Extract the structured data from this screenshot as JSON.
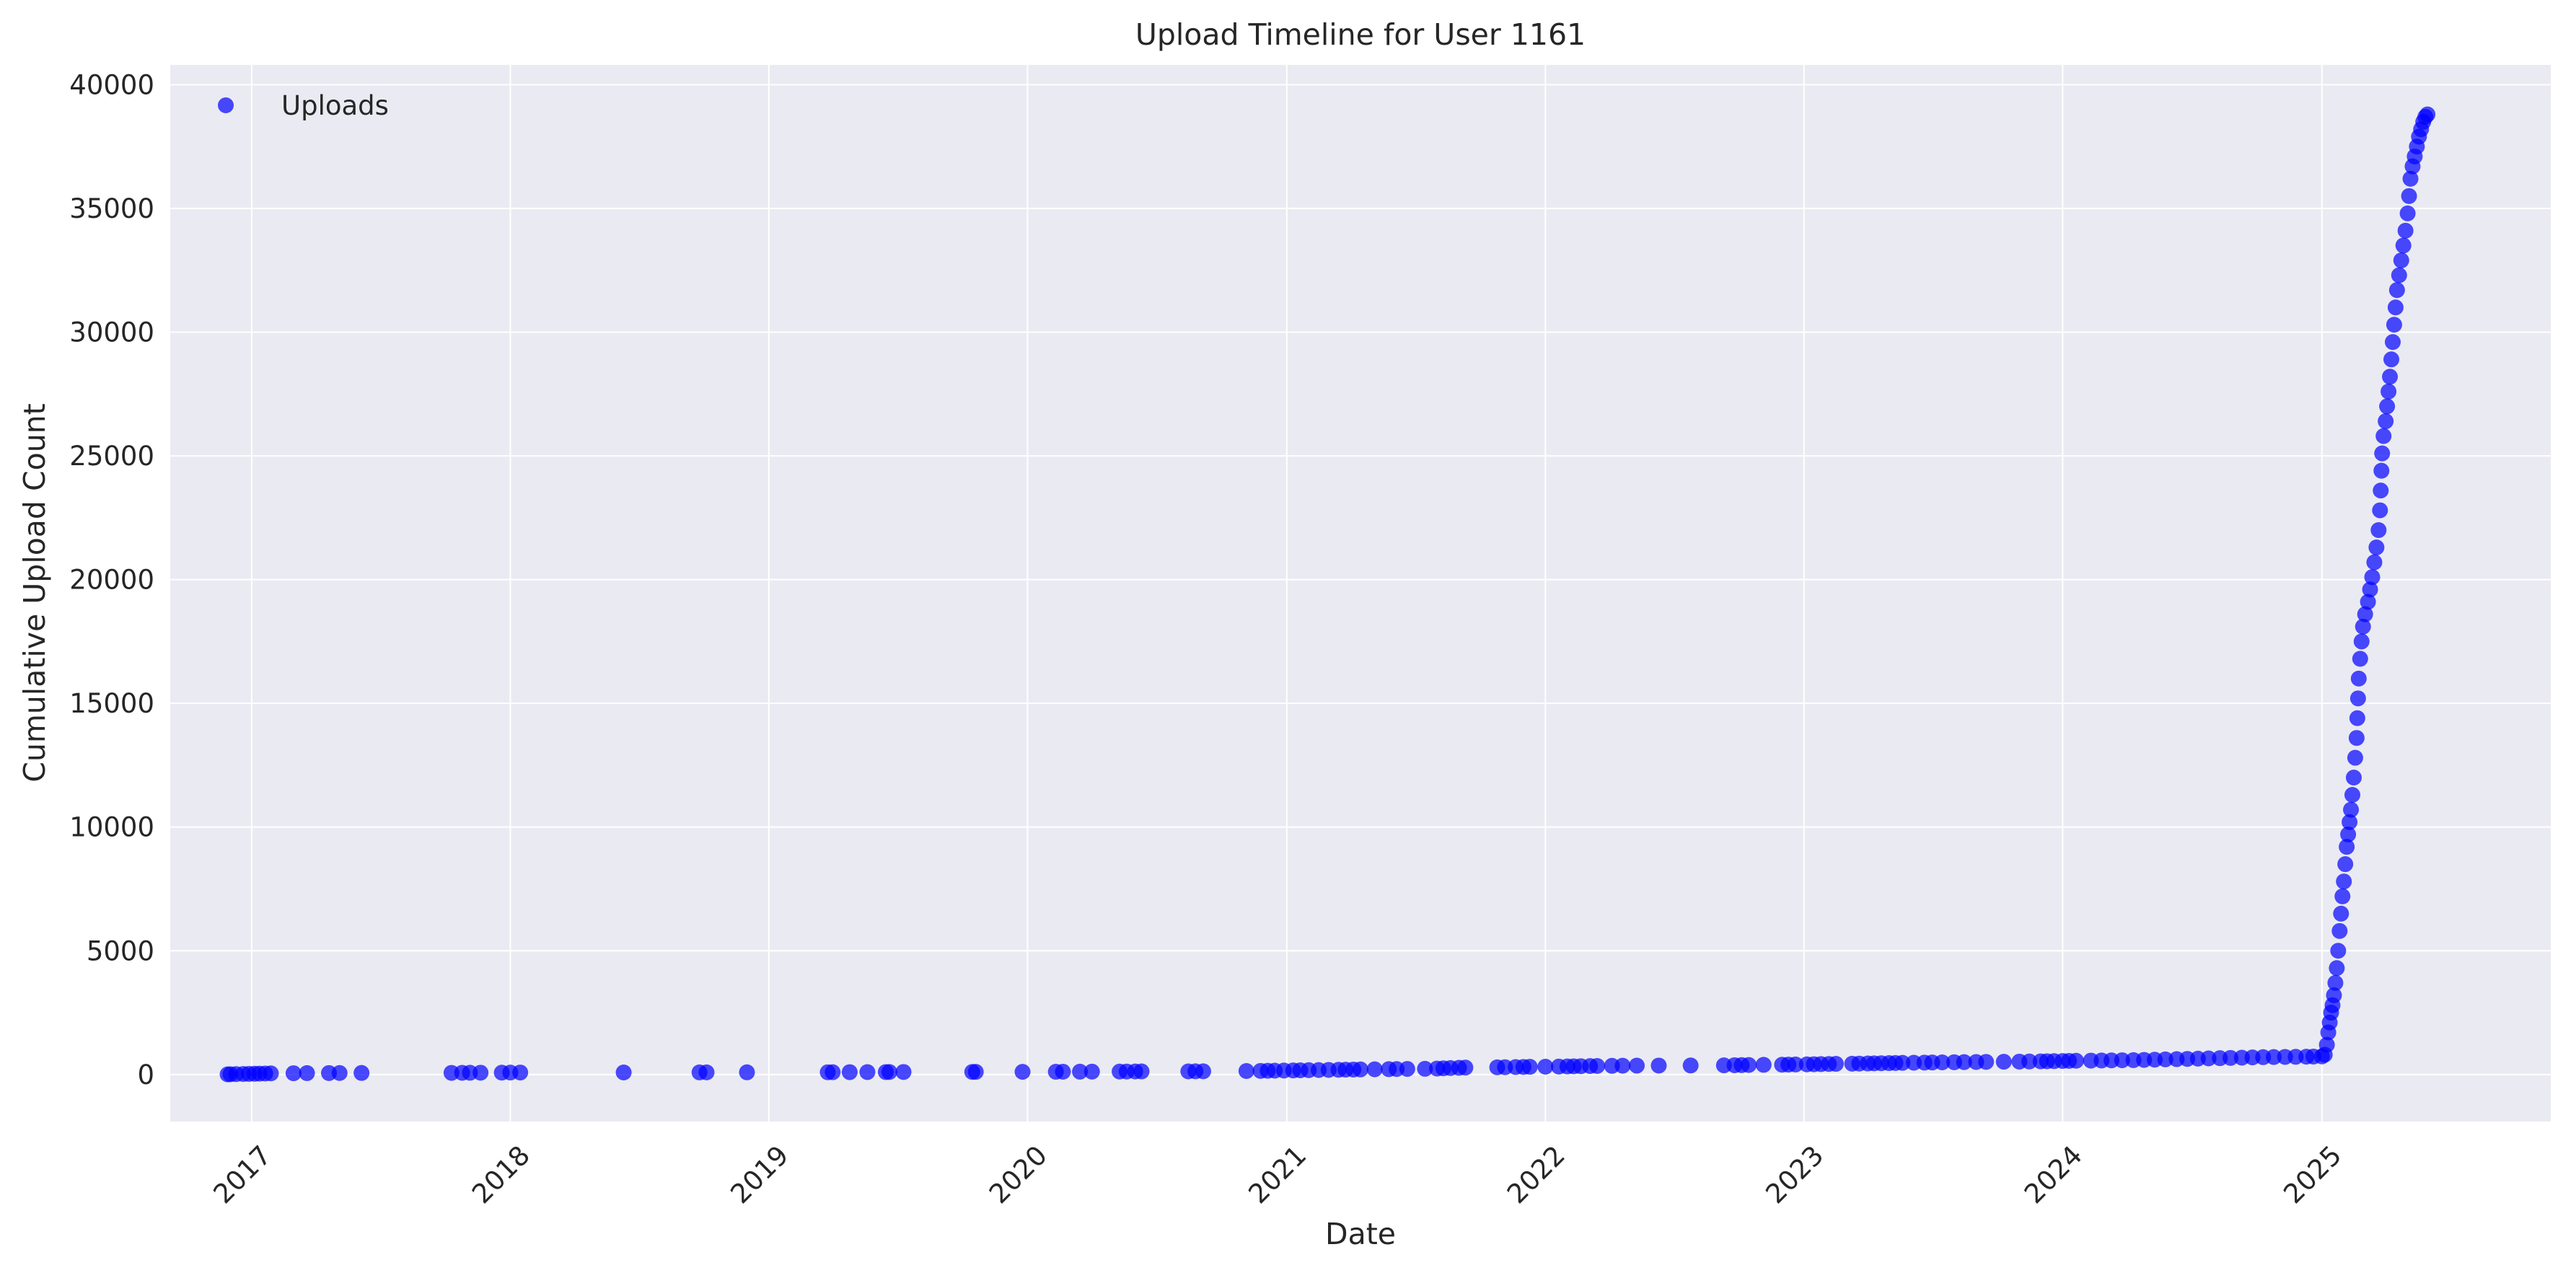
{
  "chart_data": {
    "type": "scatter",
    "title": "Upload Timeline for User 1161",
    "xlabel": "Date",
    "ylabel": "Cumulative Upload Count",
    "x_ticks": [
      "2017",
      "2018",
      "2019",
      "2020",
      "2021",
      "2022",
      "2023",
      "2024",
      "2025"
    ],
    "y_ticks": [
      0,
      5000,
      10000,
      15000,
      20000,
      25000,
      30000,
      35000,
      40000
    ],
    "xlim": [
      "2016-09-08",
      "2025-11-20"
    ],
    "ylim": [
      -1900,
      40800
    ],
    "grid": true,
    "legend_position": "top-left",
    "colors": {
      "marker": "#0000ff",
      "plot_bg": "#eaeaf2",
      "grid": "#ffffff"
    },
    "series": [
      {
        "name": "Uploads",
        "points": [
          [
            "2016-11-28",
            5
          ],
          [
            "2016-12-02",
            10
          ],
          [
            "2016-12-10",
            15
          ],
          [
            "2016-12-20",
            20
          ],
          [
            "2016-12-28",
            25
          ],
          [
            "2017-01-05",
            30
          ],
          [
            "2017-01-12",
            35
          ],
          [
            "2017-01-20",
            40
          ],
          [
            "2017-01-28",
            45
          ],
          [
            "2017-03-01",
            50
          ],
          [
            "2017-03-20",
            55
          ],
          [
            "2017-04-20",
            58
          ],
          [
            "2017-05-05",
            60
          ],
          [
            "2017-06-05",
            62
          ],
          [
            "2017-10-10",
            65
          ],
          [
            "2017-10-25",
            68
          ],
          [
            "2017-11-05",
            70
          ],
          [
            "2017-11-20",
            72
          ],
          [
            "2017-12-20",
            75
          ],
          [
            "2018-01-01",
            78
          ],
          [
            "2018-01-15",
            80
          ],
          [
            "2018-06-10",
            82
          ],
          [
            "2018-09-25",
            84
          ],
          [
            "2018-10-05",
            86
          ],
          [
            "2018-12-01",
            88
          ],
          [
            "2019-03-25",
            90
          ],
          [
            "2019-04-01",
            92
          ],
          [
            "2019-04-25",
            94
          ],
          [
            "2019-05-20",
            96
          ],
          [
            "2019-06-15",
            98
          ],
          [
            "2019-06-20",
            100
          ],
          [
            "2019-07-10",
            102
          ],
          [
            "2019-10-15",
            104
          ],
          [
            "2019-10-20",
            106
          ],
          [
            "2019-12-25",
            108
          ],
          [
            "2020-02-10",
            110
          ],
          [
            "2020-02-20",
            112
          ],
          [
            "2020-03-15",
            114
          ],
          [
            "2020-04-01",
            116
          ],
          [
            "2020-05-10",
            118
          ],
          [
            "2020-05-20",
            120
          ],
          [
            "2020-06-01",
            122
          ],
          [
            "2020-06-10",
            124
          ],
          [
            "2020-08-15",
            126
          ],
          [
            "2020-08-25",
            128
          ],
          [
            "2020-09-05",
            130
          ],
          [
            "2020-11-05",
            140
          ],
          [
            "2020-11-25",
            145
          ],
          [
            "2020-12-05",
            150
          ],
          [
            "2020-12-15",
            155
          ],
          [
            "2020-12-28",
            160
          ],
          [
            "2021-01-10",
            165
          ],
          [
            "2021-01-20",
            170
          ],
          [
            "2021-02-01",
            175
          ],
          [
            "2021-02-15",
            180
          ],
          [
            "2021-03-01",
            185
          ],
          [
            "2021-03-15",
            190
          ],
          [
            "2021-03-25",
            195
          ],
          [
            "2021-04-05",
            200
          ],
          [
            "2021-04-15",
            205
          ],
          [
            "2021-05-05",
            210
          ],
          [
            "2021-05-25",
            215
          ],
          [
            "2021-06-05",
            220
          ],
          [
            "2021-06-20",
            225
          ],
          [
            "2021-07-15",
            230
          ],
          [
            "2021-08-01",
            240
          ],
          [
            "2021-08-10",
            250
          ],
          [
            "2021-08-20",
            260
          ],
          [
            "2021-09-01",
            270
          ],
          [
            "2021-09-10",
            280
          ],
          [
            "2021-10-25",
            290
          ],
          [
            "2021-11-05",
            295
          ],
          [
            "2021-11-20",
            300
          ],
          [
            "2021-12-01",
            305
          ],
          [
            "2021-12-10",
            310
          ],
          [
            "2022-01-01",
            315
          ],
          [
            "2022-01-20",
            320
          ],
          [
            "2022-02-01",
            325
          ],
          [
            "2022-02-10",
            330
          ],
          [
            "2022-02-20",
            335
          ],
          [
            "2022-03-05",
            340
          ],
          [
            "2022-03-15",
            345
          ],
          [
            "2022-04-05",
            350
          ],
          [
            "2022-04-20",
            355
          ],
          [
            "2022-05-10",
            358
          ],
          [
            "2022-06-10",
            360
          ],
          [
            "2022-07-25",
            365
          ],
          [
            "2022-09-10",
            370
          ],
          [
            "2022-09-25",
            375
          ],
          [
            "2022-10-05",
            380
          ],
          [
            "2022-10-15",
            385
          ],
          [
            "2022-11-05",
            390
          ],
          [
            "2022-12-01",
            395
          ],
          [
            "2022-12-10",
            400
          ],
          [
            "2022-12-20",
            405
          ],
          [
            "2023-01-05",
            410
          ],
          [
            "2023-01-15",
            415
          ],
          [
            "2023-01-25",
            420
          ],
          [
            "2023-02-05",
            425
          ],
          [
            "2023-02-15",
            430
          ],
          [
            "2023-03-10",
            435
          ],
          [
            "2023-03-20",
            440
          ],
          [
            "2023-04-01",
            445
          ],
          [
            "2023-04-10",
            450
          ],
          [
            "2023-04-20",
            455
          ],
          [
            "2023-05-01",
            460
          ],
          [
            "2023-05-10",
            465
          ],
          [
            "2023-05-20",
            470
          ],
          [
            "2023-06-05",
            475
          ],
          [
            "2023-06-20",
            480
          ],
          [
            "2023-07-01",
            485
          ],
          [
            "2023-07-15",
            490
          ],
          [
            "2023-08-01",
            495
          ],
          [
            "2023-08-15",
            500
          ],
          [
            "2023-09-01",
            505
          ],
          [
            "2023-09-15",
            510
          ],
          [
            "2023-10-10",
            515
          ],
          [
            "2023-11-01",
            520
          ],
          [
            "2023-11-15",
            525
          ],
          [
            "2023-12-01",
            530
          ],
          [
            "2023-12-10",
            535
          ],
          [
            "2023-12-20",
            540
          ],
          [
            "2024-01-01",
            545
          ],
          [
            "2024-01-10",
            550
          ],
          [
            "2024-01-20",
            555
          ],
          [
            "2024-02-10",
            560
          ],
          [
            "2024-02-25",
            565
          ],
          [
            "2024-03-10",
            570
          ],
          [
            "2024-03-25",
            575
          ],
          [
            "2024-04-10",
            580
          ],
          [
            "2024-04-25",
            590
          ],
          [
            "2024-05-10",
            600
          ],
          [
            "2024-05-25",
            610
          ],
          [
            "2024-06-10",
            620
          ],
          [
            "2024-06-25",
            630
          ],
          [
            "2024-07-10",
            640
          ],
          [
            "2024-07-25",
            650
          ],
          [
            "2024-08-10",
            660
          ],
          [
            "2024-08-25",
            670
          ],
          [
            "2024-09-10",
            680
          ],
          [
            "2024-09-25",
            690
          ],
          [
            "2024-10-10",
            700
          ],
          [
            "2024-10-25",
            705
          ],
          [
            "2024-11-10",
            710
          ],
          [
            "2024-11-25",
            715
          ],
          [
            "2024-12-10",
            720
          ],
          [
            "2024-12-20",
            725
          ],
          [
            "2025-01-01",
            730
          ],
          [
            "2025-01-05",
            800
          ],
          [
            "2025-01-08",
            1200
          ],
          [
            "2025-01-10",
            1700
          ],
          [
            "2025-01-12",
            2100
          ],
          [
            "2025-01-14",
            2500
          ],
          [
            "2025-01-16",
            2800
          ],
          [
            "2025-01-18",
            3200
          ],
          [
            "2025-01-20",
            3700
          ],
          [
            "2025-01-22",
            4300
          ],
          [
            "2025-01-24",
            5000
          ],
          [
            "2025-01-26",
            5800
          ],
          [
            "2025-01-28",
            6500
          ],
          [
            "2025-01-30",
            7200
          ],
          [
            "2025-02-01",
            7800
          ],
          [
            "2025-02-03",
            8500
          ],
          [
            "2025-02-05",
            9200
          ],
          [
            "2025-02-07",
            9700
          ],
          [
            "2025-02-09",
            10200
          ],
          [
            "2025-02-11",
            10700
          ],
          [
            "2025-02-13",
            11300
          ],
          [
            "2025-02-15",
            12000
          ],
          [
            "2025-02-17",
            12800
          ],
          [
            "2025-02-19",
            13600
          ],
          [
            "2025-02-20",
            14400
          ],
          [
            "2025-02-21",
            15200
          ],
          [
            "2025-02-22",
            16000
          ],
          [
            "2025-02-24",
            16800
          ],
          [
            "2025-02-26",
            17500
          ],
          [
            "2025-02-28",
            18100
          ],
          [
            "2025-03-03",
            18600
          ],
          [
            "2025-03-07",
            19100
          ],
          [
            "2025-03-10",
            19600
          ],
          [
            "2025-03-13",
            20100
          ],
          [
            "2025-03-16",
            20700
          ],
          [
            "2025-03-19",
            21300
          ],
          [
            "2025-03-22",
            22000
          ],
          [
            "2025-03-24",
            22800
          ],
          [
            "2025-03-25",
            23600
          ],
          [
            "2025-03-26",
            24400
          ],
          [
            "2025-03-27",
            25100
          ],
          [
            "2025-03-29",
            25800
          ],
          [
            "2025-04-01",
            26400
          ],
          [
            "2025-04-03",
            27000
          ],
          [
            "2025-04-05",
            27600
          ],
          [
            "2025-04-07",
            28200
          ],
          [
            "2025-04-09",
            28900
          ],
          [
            "2025-04-11",
            29600
          ],
          [
            "2025-04-13",
            30300
          ],
          [
            "2025-04-15",
            31000
          ],
          [
            "2025-04-17",
            31700
          ],
          [
            "2025-04-20",
            32300
          ],
          [
            "2025-04-23",
            32900
          ],
          [
            "2025-04-26",
            33500
          ],
          [
            "2025-04-29",
            34100
          ],
          [
            "2025-05-02",
            34800
          ],
          [
            "2025-05-04",
            35500
          ],
          [
            "2025-05-06",
            36200
          ],
          [
            "2025-05-09",
            36700
          ],
          [
            "2025-05-12",
            37100
          ],
          [
            "2025-05-15",
            37500
          ],
          [
            "2025-05-18",
            37900
          ],
          [
            "2025-05-21",
            38200
          ],
          [
            "2025-05-24",
            38500
          ],
          [
            "2025-05-27",
            38700
          ],
          [
            "2025-05-30",
            38800
          ]
        ]
      }
    ]
  }
}
